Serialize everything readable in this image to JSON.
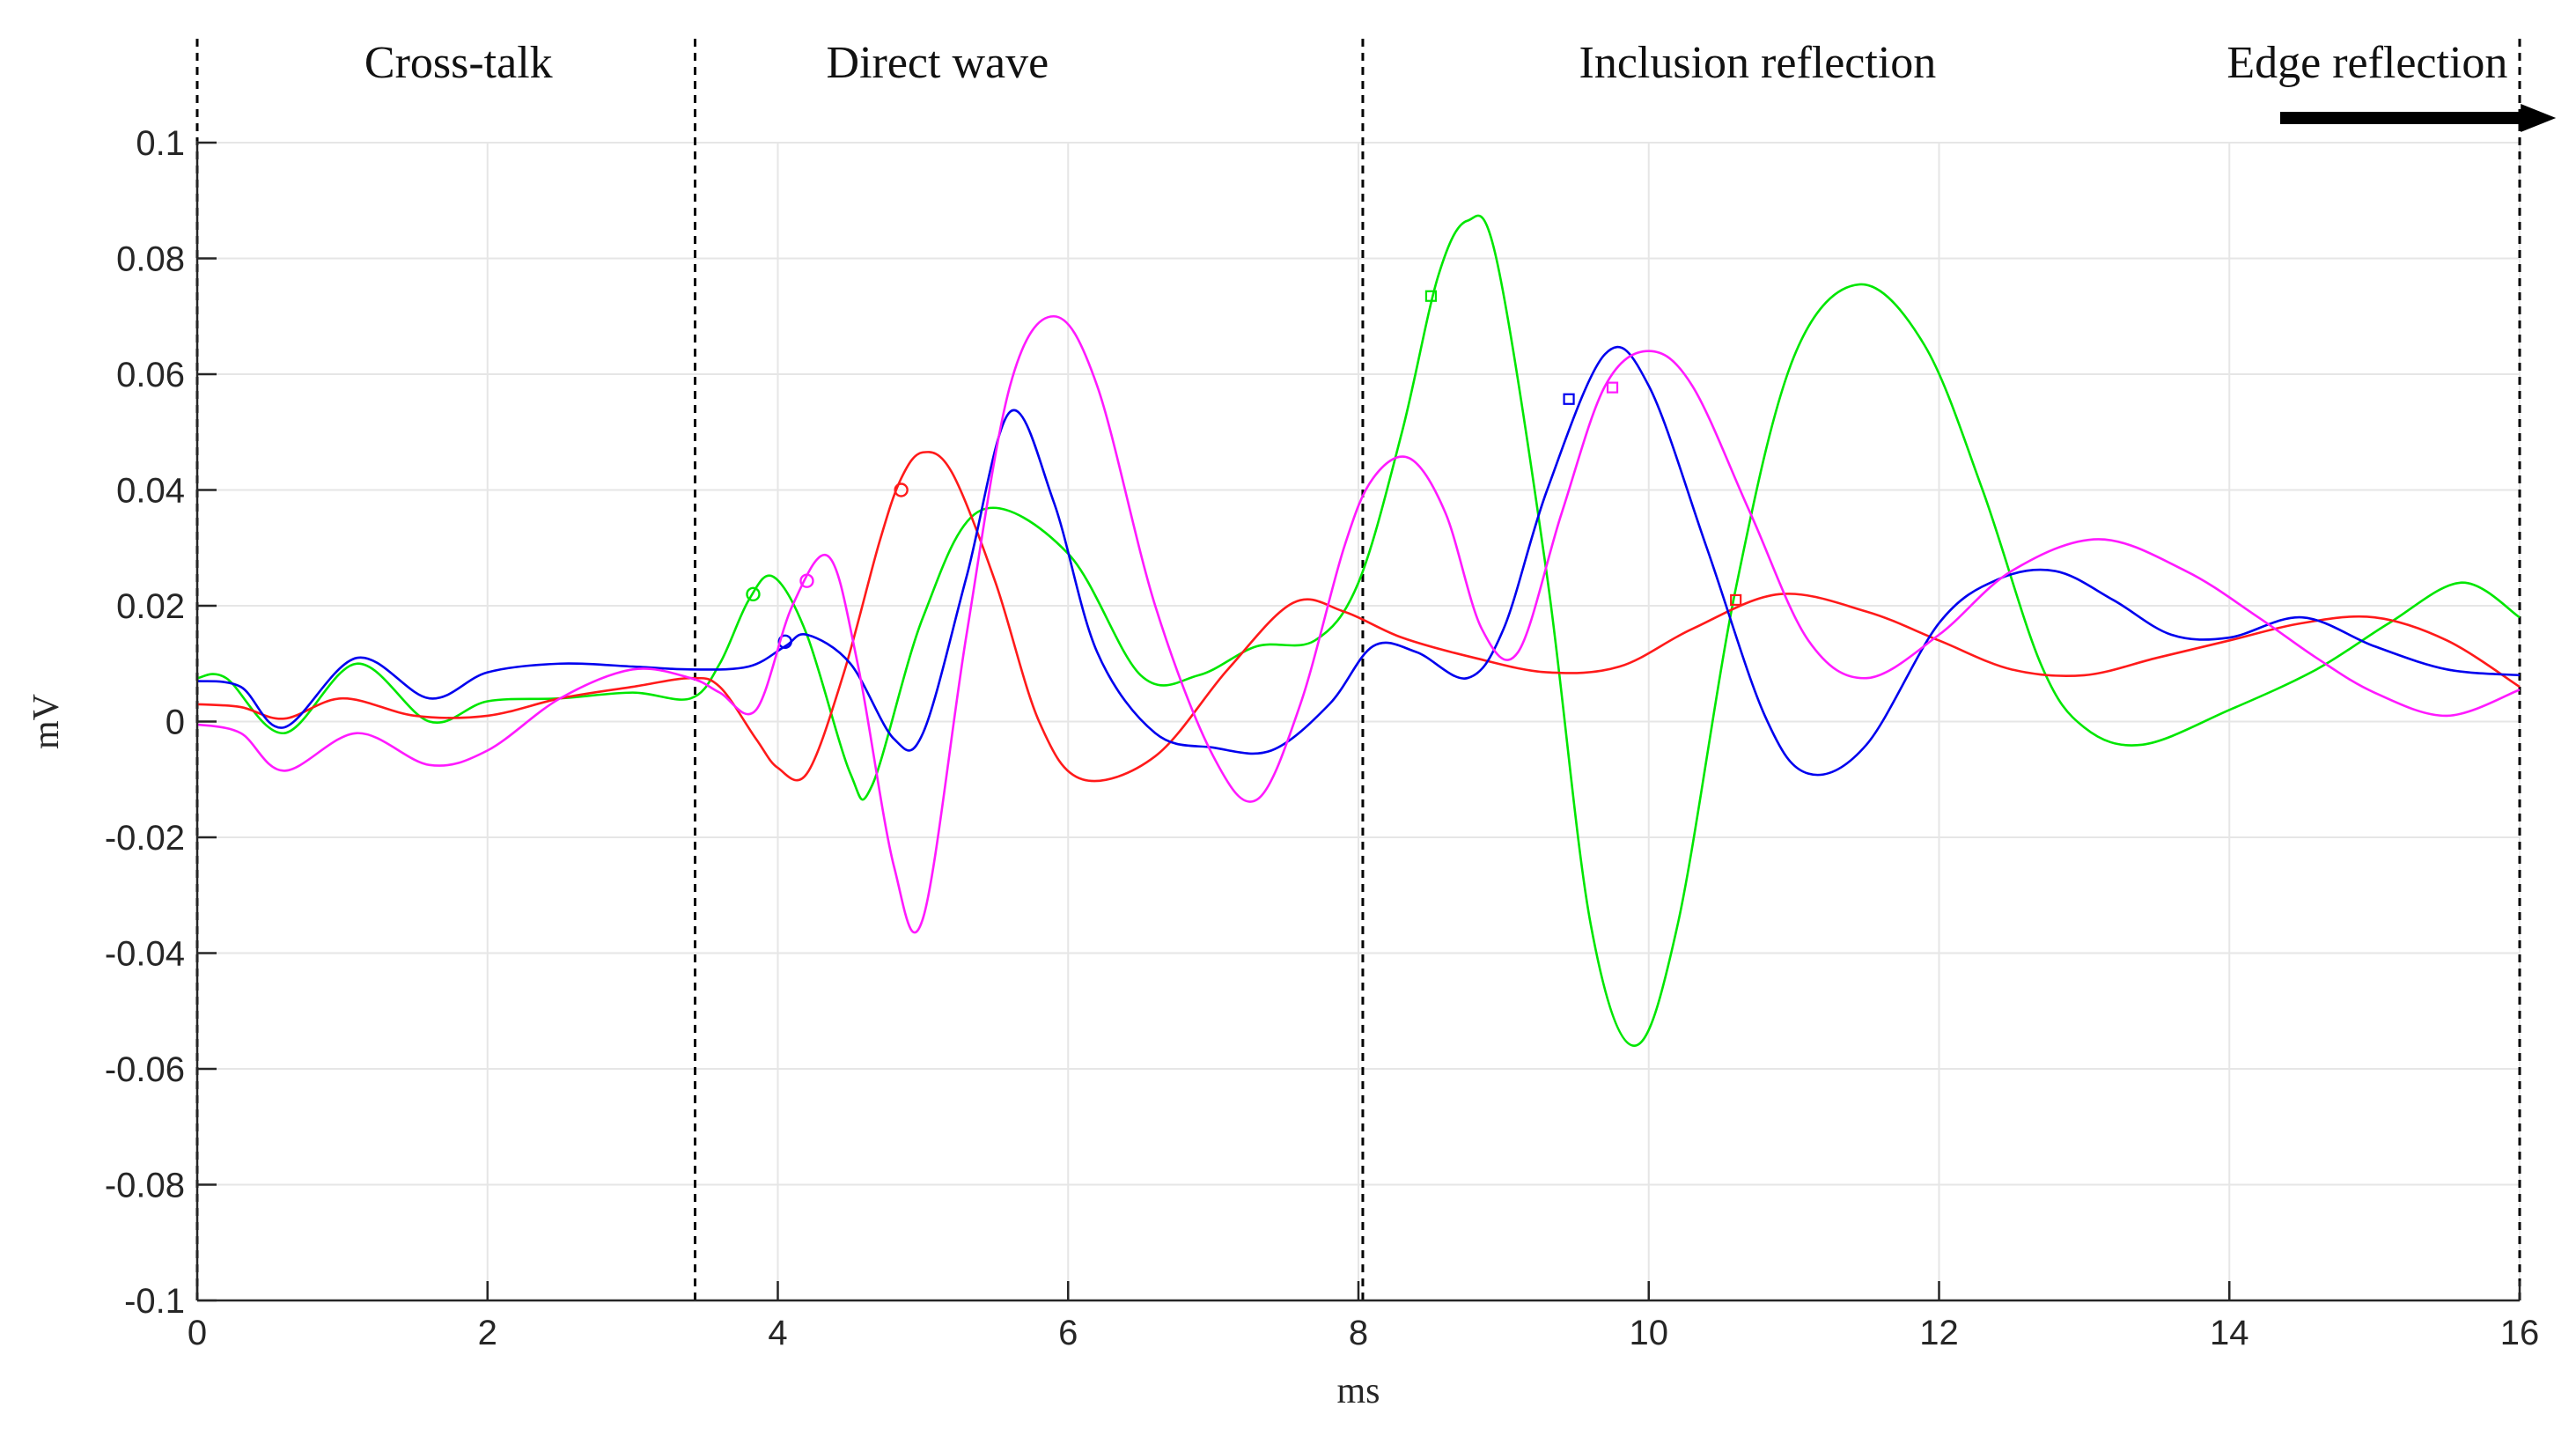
{
  "chart_data": {
    "type": "line",
    "title": "",
    "xlabel": "ms",
    "ylabel": "mV",
    "xlim": [
      0,
      16
    ],
    "ylim": [
      -0.1,
      0.1
    ],
    "grid": true,
    "xticks": [
      0,
      2,
      4,
      6,
      8,
      10,
      12,
      14,
      16
    ],
    "xtick_labels": [
      "0",
      "2",
      "4",
      "6",
      "8",
      "10",
      "12",
      "14",
      "16"
    ],
    "yticks": [
      0.1,
      0.08,
      0.06,
      0.04,
      0.02,
      0,
      -0.02,
      -0.04,
      -0.06,
      -0.08,
      -0.1
    ],
    "ytick_labels": [
      "0.1",
      "0.08",
      "0.06",
      "0.04",
      "0.02",
      "0",
      "-0.02",
      "-0.04",
      "-0.06",
      "-0.08",
      "-0.1"
    ],
    "region_boundaries": [
      0,
      3.43,
      8.03,
      16
    ],
    "regions": [
      {
        "label": "Cross-talk",
        "x_center": 1.8
      },
      {
        "label": "Direct wave",
        "x_center": 5.1
      },
      {
        "label": "Inclusion reflection",
        "x_center": 10.75
      },
      {
        "label": "Edge reflection",
        "x_center": 14.95
      }
    ],
    "arrow": {
      "from_x": 14.35,
      "to_x": 16.25,
      "direction": "right"
    },
    "series": [
      {
        "name": "green",
        "color": "#00e600",
        "x": [
          0,
          0.2,
          0.6,
          1.1,
          1.6,
          2.0,
          2.5,
          3.0,
          3.4,
          3.6,
          3.8,
          3.97,
          4.2,
          4.5,
          4.65,
          5.0,
          5.4,
          6.0,
          6.5,
          6.9,
          7.3,
          7.7,
          8.0,
          8.3,
          8.55,
          8.75,
          8.95,
          9.3,
          9.6,
          9.9,
          10.2,
          10.6,
          11.0,
          11.45,
          11.9,
          12.3,
          12.7,
          13.0,
          13.4,
          14.0,
          14.6,
          15.1,
          15.6,
          16.0
        ],
        "y": [
          0.0075,
          0.0075,
          -0.002,
          0.01,
          0.0,
          0.0035,
          0.004,
          0.005,
          0.004,
          0.01,
          0.021,
          0.025,
          0.015,
          -0.009,
          -0.011,
          0.018,
          0.0365,
          0.029,
          0.008,
          0.008,
          0.013,
          0.014,
          0.024,
          0.05,
          0.077,
          0.0865,
          0.08,
          0.025,
          -0.035,
          -0.056,
          -0.035,
          0.023,
          0.063,
          0.0755,
          0.065,
          0.04,
          0.01,
          -0.001,
          -0.004,
          0.002,
          0.009,
          0.017,
          0.024,
          0.018
        ],
        "markers": [
          {
            "x": 3.83,
            "y": 0.022,
            "shape": "circle"
          },
          {
            "x": 8.5,
            "y": 0.0735,
            "shape": "square"
          }
        ]
      },
      {
        "name": "red",
        "color": "#ff1a1a",
        "x": [
          0,
          0.3,
          0.6,
          1.0,
          1.5,
          2.0,
          2.5,
          3.0,
          3.4,
          3.6,
          3.85,
          4.0,
          4.2,
          4.45,
          4.7,
          4.85,
          5.0,
          5.2,
          5.5,
          5.8,
          6.1,
          6.6,
          7.1,
          7.55,
          7.9,
          8.3,
          8.8,
          9.3,
          9.8,
          10.3,
          10.9,
          11.5,
          12.0,
          12.5,
          13.0,
          13.5,
          14.0,
          14.5,
          15.0,
          15.5,
          16.0
        ],
        "y": [
          0.003,
          0.0025,
          0.0005,
          0.004,
          0.001,
          0.001,
          0.004,
          0.006,
          0.0075,
          0.006,
          -0.003,
          -0.008,
          -0.009,
          0.008,
          0.031,
          0.042,
          0.0465,
          0.043,
          0.024,
          0.0,
          -0.01,
          -0.006,
          0.009,
          0.0205,
          0.019,
          0.0145,
          0.011,
          0.0085,
          0.0095,
          0.016,
          0.022,
          0.019,
          0.014,
          0.009,
          0.008,
          0.011,
          0.014,
          0.017,
          0.018,
          0.014,
          0.006
        ],
        "markers": [
          {
            "x": 4.85,
            "y": 0.04,
            "shape": "circle"
          },
          {
            "x": 10.6,
            "y": 0.021,
            "shape": "square"
          }
        ]
      },
      {
        "name": "blue",
        "color": "#0000ee",
        "x": [
          0,
          0.3,
          0.6,
          1.1,
          1.6,
          2.0,
          2.5,
          3.0,
          3.4,
          3.8,
          4.05,
          4.2,
          4.5,
          4.8,
          5.0,
          5.3,
          5.6,
          5.9,
          6.2,
          6.6,
          7.0,
          7.4,
          7.8,
          8.1,
          8.4,
          8.75,
          9.0,
          9.3,
          9.7,
          10.0,
          10.4,
          10.8,
          11.1,
          11.5,
          12.0,
          12.4,
          12.8,
          13.2,
          13.6,
          14.0,
          14.5,
          15.0,
          15.5,
          16.0
        ],
        "y": [
          0.007,
          0.006,
          -0.001,
          0.011,
          0.004,
          0.0085,
          0.01,
          0.0095,
          0.009,
          0.0095,
          0.013,
          0.015,
          0.01,
          -0.003,
          -0.002,
          0.025,
          0.0535,
          0.038,
          0.012,
          -0.002,
          -0.0045,
          -0.005,
          0.003,
          0.013,
          0.012,
          0.0075,
          0.016,
          0.04,
          0.0635,
          0.058,
          0.03,
          0.001,
          -0.009,
          -0.004,
          0.017,
          0.0245,
          0.026,
          0.021,
          0.015,
          0.0145,
          0.018,
          0.013,
          0.009,
          0.008
        ],
        "markers": [
          {
            "x": 4.05,
            "y": 0.0138,
            "shape": "circle"
          },
          {
            "x": 9.45,
            "y": 0.0557,
            "shape": "square"
          }
        ]
      },
      {
        "name": "magenta",
        "color": "#ff1aff",
        "x": [
          0,
          0.3,
          0.6,
          1.1,
          1.6,
          2.0,
          2.5,
          3.0,
          3.4,
          3.6,
          3.85,
          4.1,
          4.35,
          4.55,
          4.8,
          5.0,
          5.3,
          5.6,
          5.9,
          6.2,
          6.6,
          7.0,
          7.3,
          7.6,
          7.9,
          8.1,
          8.35,
          8.6,
          8.85,
          9.1,
          9.4,
          9.7,
          10.0,
          10.3,
          10.7,
          11.1,
          11.5,
          12.0,
          12.5,
          13.1,
          13.7,
          14.2,
          14.6,
          15.0,
          15.5,
          16.0
        ],
        "y": [
          -0.0005,
          -0.002,
          -0.0085,
          -0.002,
          -0.0075,
          -0.005,
          0.004,
          0.009,
          0.0075,
          0.005,
          0.002,
          0.02,
          0.0285,
          0.01,
          -0.025,
          -0.034,
          0.015,
          0.058,
          0.07,
          0.058,
          0.02,
          -0.006,
          -0.0135,
          0.003,
          0.03,
          0.042,
          0.0455,
          0.036,
          0.016,
          0.012,
          0.036,
          0.058,
          0.064,
          0.058,
          0.036,
          0.014,
          0.0075,
          0.015,
          0.026,
          0.0315,
          0.026,
          0.018,
          0.011,
          0.005,
          0.001,
          0.0055
        ],
        "markers": [
          {
            "x": 4.2,
            "y": 0.0243,
            "shape": "circle"
          },
          {
            "x": 9.75,
            "y": 0.0577,
            "shape": "square"
          }
        ]
      }
    ]
  }
}
